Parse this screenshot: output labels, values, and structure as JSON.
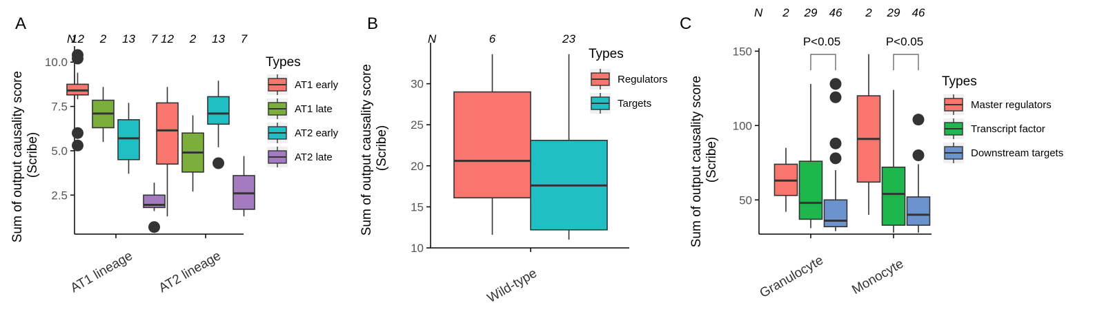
{
  "chart_data": [
    {
      "panel": "A",
      "type": "box",
      "ylabel": "Sum of output causality score\n(Scribe)",
      "ylim": [
        0.3,
        10.9
      ],
      "yticks": [
        2.5,
        5.0,
        7.5,
        10.0
      ],
      "ytick_labels": [
        "2.5",
        "5.0",
        "7.5",
        "10.0"
      ],
      "categories": [
        "AT1 lineage",
        "AT2 lineage"
      ],
      "n_header": "N",
      "legend": {
        "title": "Types",
        "entries": [
          {
            "name": "AT1 early",
            "color": "#F8766D"
          },
          {
            "name": "AT1 late",
            "color": "#7CAE3C"
          },
          {
            "name": "AT2 early",
            "color": "#1FBFC4"
          },
          {
            "name": "AT2 late",
            "color": "#A47BBF"
          }
        ]
      },
      "groups": [
        {
          "category": "AT1 lineage",
          "boxes": [
            {
              "type": "AT1 early",
              "n": "12",
              "whisker_low": 7.9,
              "q1": 8.15,
              "median": 8.4,
              "q3": 8.75,
              "whisker_high": 9.4,
              "outliers": [
                10.4,
                10.2,
                6.0,
                5.3
              ]
            },
            {
              "type": "AT1 late",
              "n": "2",
              "whisker_low": 5.5,
              "q1": 6.3,
              "median": 7.1,
              "q3": 7.85,
              "whisker_high": 8.6,
              "outliers": []
            },
            {
              "type": "AT2 early",
              "n": "13",
              "whisker_low": 3.7,
              "q1": 4.5,
              "median": 5.7,
              "q3": 6.75,
              "whisker_high": 7.7,
              "outliers": []
            },
            {
              "type": "AT2 late",
              "n": "7",
              "whisker_low": 1.6,
              "q1": 1.8,
              "median": 1.95,
              "q3": 2.5,
              "whisker_high": 3.2,
              "outliers": [
                0.7
              ]
            }
          ]
        },
        {
          "category": "AT2 lineage",
          "boxes": [
            {
              "type": "AT1 early",
              "n": "12",
              "whisker_low": 1.3,
              "q1": 4.25,
              "median": 6.15,
              "q3": 7.7,
              "whisker_high": 8.6,
              "outliers": []
            },
            {
              "type": "AT1 late",
              "n": "2",
              "whisker_low": 2.7,
              "q1": 3.8,
              "median": 4.9,
              "q3": 6.0,
              "whisker_high": 7.0,
              "outliers": []
            },
            {
              "type": "AT2 early",
              "n": "13",
              "whisker_low": 5.2,
              "q1": 6.5,
              "median": 7.1,
              "q3": 8.05,
              "whisker_high": 8.95,
              "outliers": [
                4.3
              ]
            },
            {
              "type": "AT2 late",
              "n": "7",
              "whisker_low": 1.3,
              "q1": 1.7,
              "median": 2.6,
              "q3": 3.6,
              "whisker_high": 4.7,
              "outliers": []
            }
          ]
        }
      ]
    },
    {
      "panel": "B",
      "type": "box",
      "ylabel": "Sum of output causality score\n(Scribe)",
      "ylim": [
        10,
        35
      ],
      "yticks": [
        10,
        15,
        20,
        25,
        30
      ],
      "ytick_labels": [
        "10",
        "15",
        "20",
        "25",
        "30"
      ],
      "categories": [
        "Wild-type"
      ],
      "n_header": "N",
      "legend": {
        "title": "Types",
        "entries": [
          {
            "name": "Regulators",
            "color": "#F8766D"
          },
          {
            "name": "Targets",
            "color": "#1FBFC4"
          }
        ]
      },
      "groups": [
        {
          "category": "Wild-type",
          "boxes": [
            {
              "type": "Regulators",
              "n": "6",
              "whisker_low": 11.6,
              "q1": 16.1,
              "median": 20.6,
              "q3": 29.0,
              "whisker_high": 33.6,
              "outliers": []
            },
            {
              "type": "Targets",
              "n": "23",
              "whisker_low": 11.0,
              "q1": 12.2,
              "median": 17.6,
              "q3": 23.1,
              "whisker_high": 33.6,
              "outliers": []
            }
          ]
        }
      ]
    },
    {
      "panel": "C",
      "type": "box",
      "ylabel": "Sum of output causality score\n(Scribe)",
      "ylim": [
        27,
        152
      ],
      "yticks": [
        50,
        100,
        150
      ],
      "ytick_labels": [
        "50",
        "100",
        "150"
      ],
      "categories": [
        "Granulocyte",
        "Monocyte"
      ],
      "n_header": "N",
      "significance": [
        "P<0.05",
        "P<0.05"
      ],
      "legend": {
        "title": "Types",
        "entries": [
          {
            "name": "Master regulators",
            "color": "#F8766D"
          },
          {
            "name": "Transcript factor",
            "color": "#1DB74E"
          },
          {
            "name": "Downstream targets",
            "color": "#6D93CF"
          }
        ]
      },
      "groups": [
        {
          "category": "Granulocyte",
          "boxes": [
            {
              "type": "Master regulators",
              "n": "2",
              "whisker_low": 42,
              "q1": 53,
              "median": 63,
              "q3": 74,
              "whisker_high": 85,
              "outliers": []
            },
            {
              "type": "Transcript factor",
              "n": "29",
              "whisker_low": 31,
              "q1": 37,
              "median": 48,
              "q3": 76,
              "whisker_high": 128,
              "outliers": []
            },
            {
              "type": "Downstream targets",
              "n": "46",
              "whisker_low": 29,
              "q1": 32,
              "median": 36,
              "q3": 50,
              "whisker_high": 70,
              "outliers": [
                128,
                119,
                88,
                78
              ]
            }
          ]
        },
        {
          "category": "Monocyte",
          "boxes": [
            {
              "type": "Master regulators",
              "n": "2",
              "whisker_low": 40,
              "q1": 62,
              "median": 91,
              "q3": 120,
              "whisker_high": 148,
              "outliers": []
            },
            {
              "type": "Transcript factor",
              "n": "29",
              "whisker_low": 28,
              "q1": 33,
              "median": 54,
              "q3": 72,
              "whisker_high": 124,
              "outliers": []
            },
            {
              "type": "Downstream targets",
              "n": "46",
              "whisker_low": 28,
              "q1": 33,
              "median": 40,
              "q3": 52,
              "whisker_high": 74,
              "outliers": [
                104,
                80
              ]
            }
          ]
        }
      ]
    }
  ]
}
